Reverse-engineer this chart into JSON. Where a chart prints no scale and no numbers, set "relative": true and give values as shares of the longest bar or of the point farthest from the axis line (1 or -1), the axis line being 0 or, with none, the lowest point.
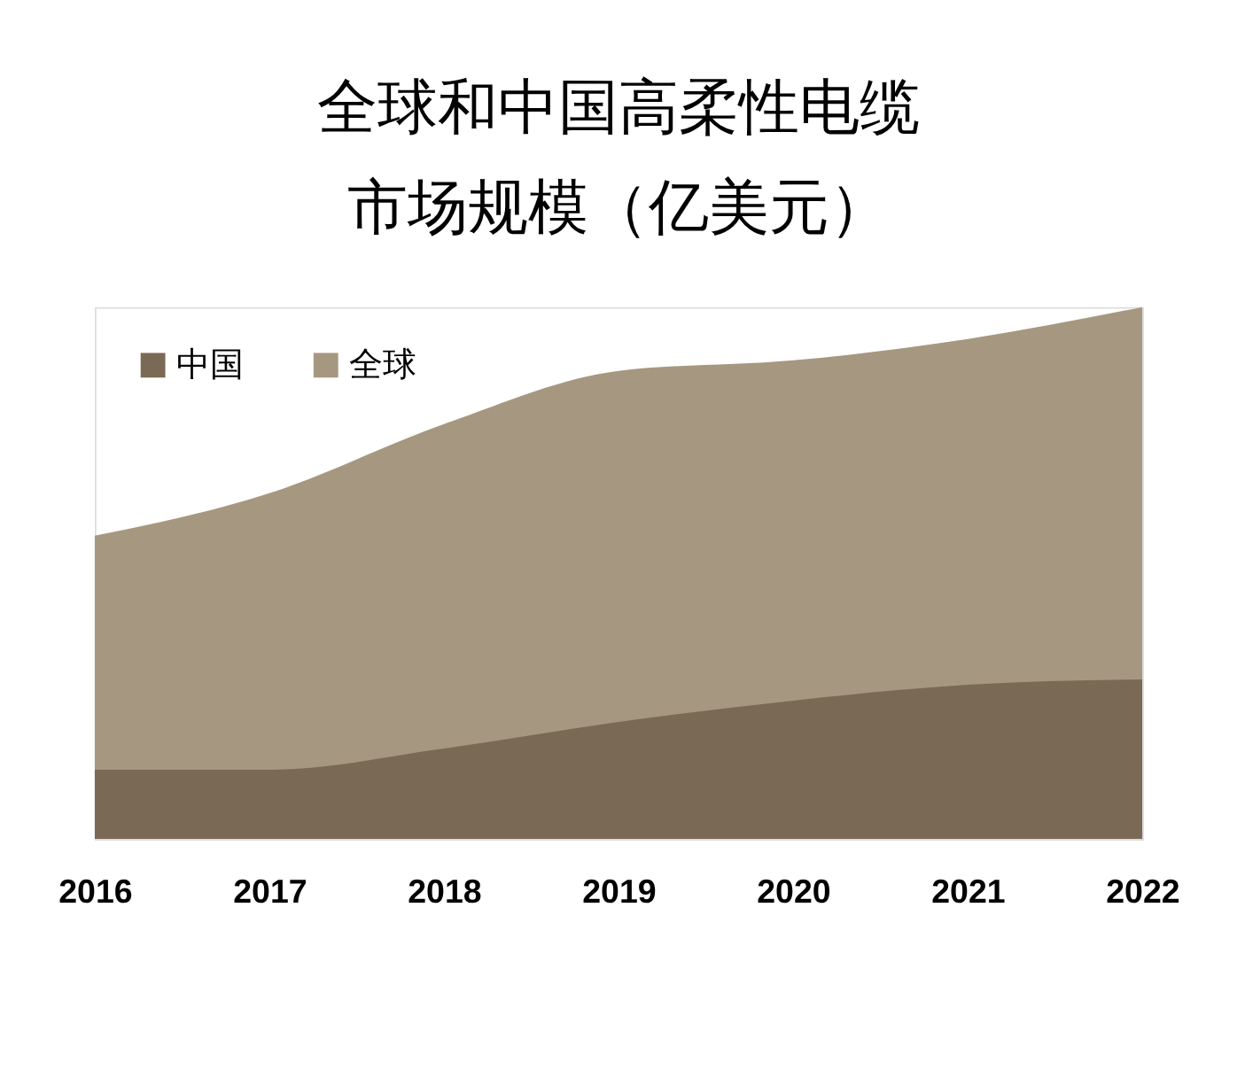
{
  "chart_data": {
    "type": "area",
    "title": [
      "全球和中国高柔性电缆",
      "市场规模（亿美元）"
    ],
    "relative": true,
    "categories": [
      "2016",
      "2017",
      "2018",
      "2019",
      "2020",
      "2021",
      "2022"
    ],
    "series": [
      {
        "name": "中国",
        "color": "#7a6a55",
        "values": [
          0.13,
          0.13,
          0.17,
          0.22,
          0.26,
          0.29,
          0.3
        ]
      },
      {
        "name": "全球",
        "color": "#a69880",
        "values": [
          0.57,
          0.65,
          0.78,
          0.88,
          0.9,
          0.94,
          1.0
        ]
      }
    ],
    "legend": "top left"
  }
}
